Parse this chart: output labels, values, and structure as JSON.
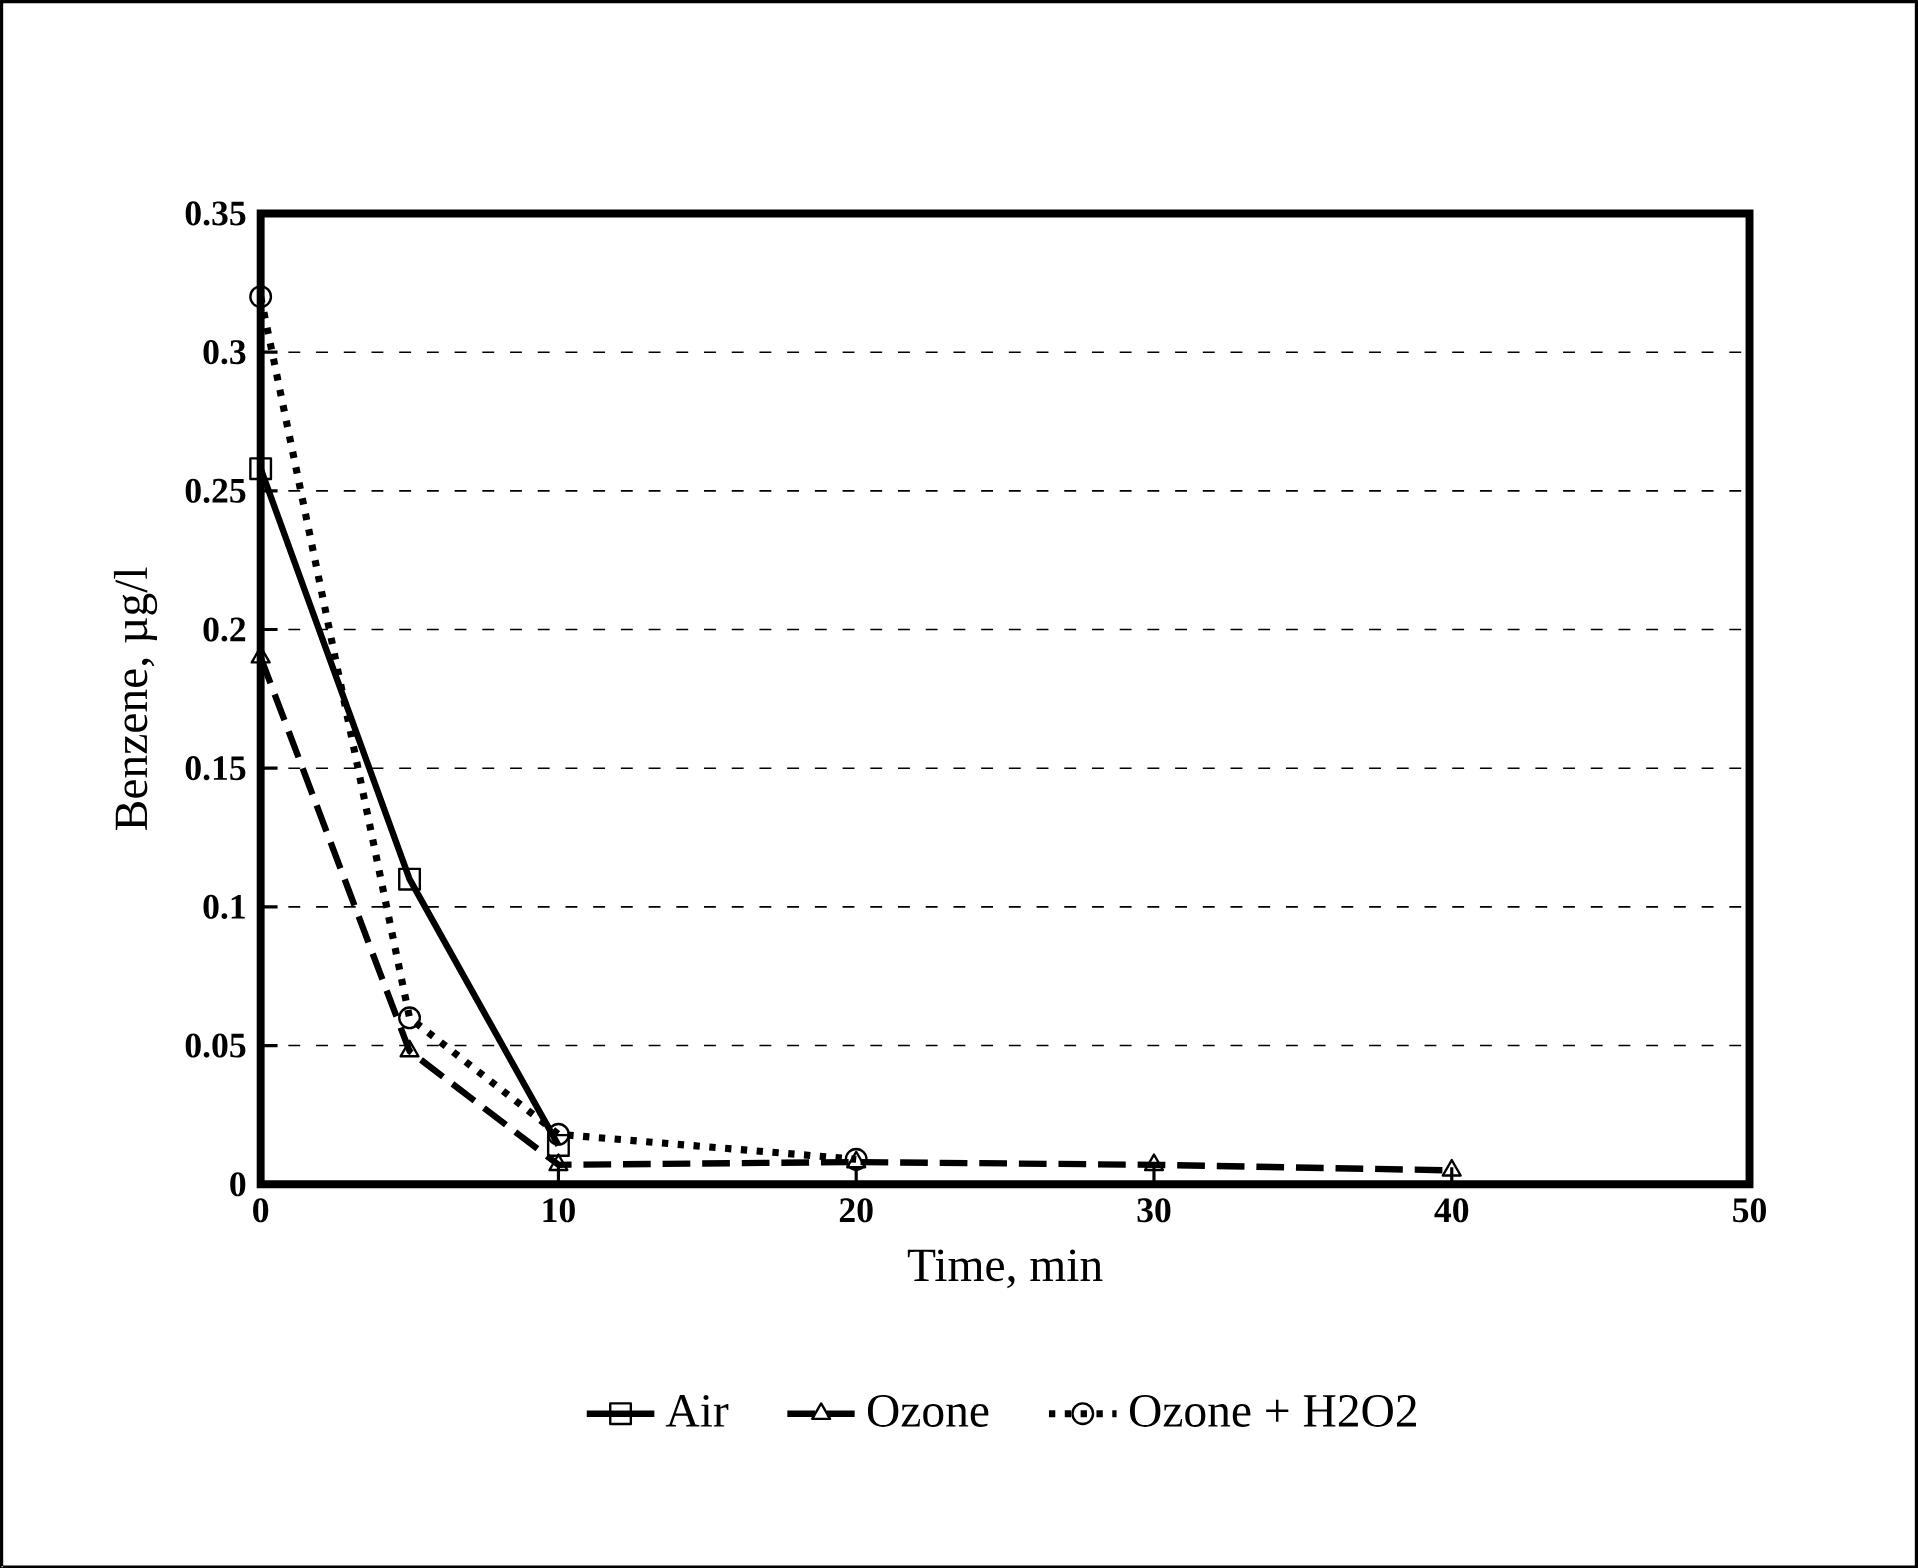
{
  "chart_data": {
    "type": "line",
    "xlabel": "Time, min",
    "ylabel": "Benzene, µg/l",
    "xlim": [
      0,
      50
    ],
    "xticks": [
      0,
      10,
      20,
      30,
      40,
      50
    ],
    "ylim": [
      0,
      0.35
    ],
    "yticks": [
      0,
      0.05,
      0.1,
      0.15,
      0.2,
      0.25,
      0.3,
      0.35
    ],
    "grid": "y",
    "legend": "bottom",
    "series": [
      {
        "name": "Air",
        "color": "#000000",
        "marker": "square",
        "line_style": "solid",
        "x": [
          0,
          5,
          10
        ],
        "values": [
          0.258,
          0.11,
          0.014
        ]
      },
      {
        "name": "Ozone",
        "color": "#000000",
        "marker": "triangle",
        "line_style": "dashed",
        "x": [
          0,
          5,
          10,
          20,
          30,
          40
        ],
        "values": [
          0.19,
          0.048,
          0.007,
          0.008,
          0.007,
          0.005
        ]
      },
      {
        "name": "Ozone + H2O2",
        "color": "#000000",
        "marker": "circle",
        "line_style": "dotted",
        "x": [
          0,
          5,
          10,
          20
        ],
        "values": [
          0.32,
          0.06,
          0.018,
          0.009
        ]
      }
    ]
  }
}
